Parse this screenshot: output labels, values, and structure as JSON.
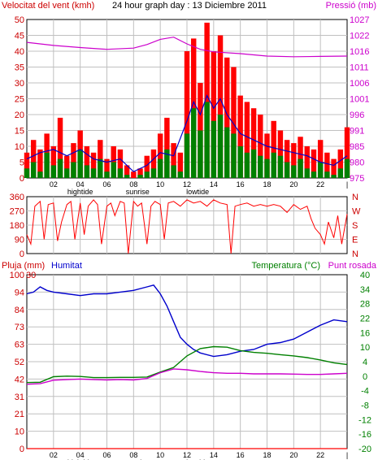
{
  "header": {
    "left_label": "Velocitat del vent (kmh)",
    "title": "24 hour graph day : 13 Diciembre 2011",
    "right_label": "Pressió (mb)"
  },
  "colors": {
    "wind": "#ff0000",
    "wind_avg": "#0000cc",
    "wind_min": "#008000",
    "pressure": "#cc00cc",
    "direction": "#ff0000",
    "humidity": "#0000cc",
    "temperature": "#008000",
    "dewpoint": "#cc00cc",
    "rain": "#ff0000",
    "frame": "#000000",
    "grid": "#c0c0c0"
  },
  "x_axis": {
    "hours": [
      "02",
      "04",
      "06",
      "08",
      "10",
      "12",
      "14",
      "16",
      "18",
      "20",
      "22",
      "|"
    ],
    "events": [
      {
        "label": "hightide",
        "hour": 4
      },
      {
        "label": "sunrise",
        "hour": 8.3
      },
      {
        "label": "lowtide",
        "hour": 12.8
      }
    ]
  },
  "panel_wind": {
    "left_ticks": [
      "0",
      "5",
      "10",
      "15",
      "20",
      "25",
      "30",
      "35",
      "40",
      "45",
      "50"
    ],
    "right_ticks": [
      "975",
      "980",
      "985",
      "991",
      "996",
      "1001",
      "1006",
      "1011",
      "1016",
      "1022",
      "1027"
    ]
  },
  "panel_direction": {
    "left_ticks": [
      "0",
      "90",
      "180",
      "270",
      "360"
    ],
    "right_ticks": [
      "N",
      "E",
      "S",
      "W",
      "N"
    ]
  },
  "panel_weather": {
    "label_rain": "Pluja (mm)",
    "label_humidity": "Humitat",
    "label_temp": "Temperatura (°C)",
    "label_dew": "Punt rosada",
    "hum_ticks": [
      "0",
      "10",
      "21",
      "31",
      "42",
      "52",
      "63",
      "73",
      "84",
      "94",
      "100"
    ],
    "rain_ticks": [
      "30"
    ],
    "temp_ticks": [
      "-20",
      "-16",
      "-12",
      "-8",
      "-4",
      "0",
      "4",
      "10",
      "16",
      "22",
      "28",
      "34",
      "40"
    ]
  },
  "chart_data": [
    {
      "type": "bar",
      "title": "24 hour graph day : 13 Diciembre 2011",
      "ylabel": "Velocitat del vent (kmh)",
      "ylim": [
        0,
        50
      ],
      "x_hours": [
        0,
        24
      ],
      "series": [
        {
          "name": "Velocitat del vent (kmh)",
          "role": "gust",
          "x": [
            0,
            0.5,
            1,
            1.5,
            2,
            2.5,
            3,
            3.5,
            4,
            4.5,
            5,
            5.5,
            6,
            6.5,
            7,
            7.5,
            8,
            8.5,
            9,
            9.5,
            10,
            10.5,
            11,
            11.5,
            12,
            12.5,
            13,
            13.5,
            14,
            14.5,
            15,
            15.5,
            16,
            16.5,
            17,
            17.5,
            18,
            18.5,
            19,
            19.5,
            20,
            20.5,
            21,
            21.5,
            22,
            22.5,
            23,
            23.5,
            24
          ],
          "values": [
            8,
            12,
            9,
            14,
            10,
            19,
            7,
            11,
            15,
            10,
            8,
            12,
            6,
            10,
            9,
            4,
            2,
            3,
            7,
            9,
            14,
            19,
            11,
            8,
            40,
            44,
            30,
            49,
            40,
            45,
            38,
            35,
            26,
            24,
            22,
            20,
            14,
            18,
            15,
            12,
            11,
            13,
            10,
            9,
            12,
            8,
            6,
            9,
            16
          ]
        },
        {
          "name": "avg",
          "role": "avg",
          "x": [
            0,
            1,
            2,
            3,
            4,
            5,
            6,
            7,
            8,
            9,
            10,
            11,
            12,
            12.5,
            13,
            13.5,
            14,
            14.5,
            15,
            15.5,
            16,
            17,
            18,
            19,
            20,
            21,
            22,
            23,
            24
          ],
          "values": [
            6,
            8,
            9,
            7,
            9,
            6,
            5,
            6,
            2,
            4,
            8,
            7,
            18,
            24,
            20,
            26,
            22,
            25,
            20,
            17,
            14,
            12,
            10,
            9,
            8,
            7,
            5,
            4,
            7
          ]
        },
        {
          "name": "min",
          "role": "min",
          "x": [
            0,
            0.5,
            1,
            1.5,
            2,
            2.5,
            3,
            3.5,
            4,
            4.5,
            5,
            5.5,
            6,
            6.5,
            7,
            7.5,
            8,
            8.5,
            9,
            9.5,
            10,
            10.5,
            11,
            11.5,
            12,
            12.5,
            13,
            13.5,
            14,
            14.5,
            15,
            15.5,
            16,
            16.5,
            17,
            17.5,
            18,
            18.5,
            19,
            19.5,
            20,
            20.5,
            21,
            21.5,
            22,
            22.5,
            23,
            23.5,
            24
          ],
          "values": [
            3,
            5,
            2,
            8,
            4,
            6,
            3,
            5,
            9,
            4,
            3,
            6,
            2,
            5,
            3,
            1,
            0,
            1,
            2,
            3,
            6,
            9,
            4,
            2,
            14,
            22,
            15,
            24,
            18,
            20,
            16,
            14,
            10,
            8,
            9,
            7,
            6,
            8,
            7,
            5,
            4,
            6,
            3,
            2,
            5,
            2,
            1,
            3,
            6
          ]
        },
        {
          "name": "Pressió (mb)",
          "role": "pressure",
          "x": [
            0,
            2,
            4,
            6,
            8,
            9,
            10,
            11,
            12,
            13,
            14,
            16,
            18,
            20,
            22,
            24
          ],
          "values": [
            1019.5,
            1018.5,
            1017.8,
            1017.2,
            1017.6,
            1018.8,
            1020.5,
            1021.2,
            1019.0,
            1017.2,
            1016.4,
            1015.8,
            1015.0,
            1014.8,
            1014.9,
            1015.0
          ]
        }
      ],
      "y2lim": [
        975,
        1027
      ]
    },
    {
      "type": "line",
      "title": "",
      "ylim": [
        0,
        360
      ],
      "x_hours": [
        0,
        24
      ],
      "series": [
        {
          "name": "",
          "x": [
            0,
            0.3,
            0.6,
            1,
            1.3,
            1.6,
            2,
            2.3,
            2.6,
            3,
            3.3,
            3.6,
            4,
            4.3,
            4.6,
            5,
            5.3,
            5.6,
            6,
            6.3,
            6.6,
            7,
            7.3,
            7.6,
            8,
            8.3,
            8.6,
            9,
            9.3,
            9.6,
            10,
            10.3,
            10.6,
            11,
            11.5,
            12,
            12.5,
            13,
            13.5,
            14,
            14.5,
            15,
            15.3,
            15.6,
            16,
            16.5,
            17,
            17.5,
            18,
            18.5,
            19,
            19.5,
            20,
            20.5,
            21,
            21.3,
            21.6,
            22,
            22.3,
            22.6,
            23,
            23.3,
            23.6,
            24
          ],
          "values": [
            120,
            60,
            300,
            330,
            90,
            310,
            320,
            80,
            200,
            310,
            330,
            90,
            320,
            120,
            300,
            340,
            310,
            60,
            300,
            320,
            240,
            330,
            320,
            0,
            330,
            300,
            320,
            60,
            300,
            330,
            310,
            90,
            320,
            330,
            300,
            340,
            320,
            330,
            300,
            340,
            320,
            310,
            0,
            300,
            310,
            320,
            300,
            310,
            300,
            310,
            300,
            260,
            310,
            280,
            300,
            220,
            160,
            120,
            60,
            200,
            100,
            240,
            60,
            250
          ]
        }
      ]
    },
    {
      "type": "line",
      "title": "",
      "ylim": [
        0,
        100
      ],
      "x_hours": [
        0,
        24
      ],
      "series": [
        {
          "name": "Humitat",
          "x": [
            0,
            0.5,
            1,
            1.5,
            2,
            3,
            4,
            5,
            6,
            7,
            8,
            9,
            9.5,
            10,
            10.5,
            11,
            11.5,
            12,
            12.5,
            13,
            14,
            15,
            16,
            17,
            18,
            19,
            20,
            21,
            22,
            23,
            24
          ],
          "values": [
            89,
            90,
            93,
            91,
            90,
            89,
            88,
            89,
            89,
            90,
            91,
            93,
            94,
            89,
            82,
            73,
            64,
            60,
            57,
            55,
            53,
            54,
            56,
            57,
            60,
            61,
            63,
            67,
            71,
            74,
            73
          ]
        },
        {
          "name": "Temperatura (°C)",
          "x": [
            0,
            1,
            2,
            3,
            4,
            5,
            6,
            7,
            8,
            9,
            10,
            11,
            12,
            13,
            14,
            15,
            16,
            17,
            18,
            19,
            20,
            21,
            22,
            23,
            24
          ],
          "values": [
            2.8,
            2.9,
            4.8,
            5.0,
            4.9,
            4.5,
            4.5,
            4.6,
            4.6,
            4.7,
            6.4,
            8.0,
            12.0,
            14.5,
            15.2,
            15.0,
            13.8,
            13.2,
            12.9,
            12.4,
            12.0,
            11.4,
            10.6,
            9.6,
            9.0
          ]
        },
        {
          "name": "Punt rosada",
          "x": [
            0,
            1,
            2,
            3,
            4,
            5,
            6,
            7,
            8,
            9,
            10,
            11,
            12,
            13,
            14,
            15,
            16,
            17,
            18,
            19,
            20,
            21,
            22,
            23,
            24
          ],
          "values": [
            2.2,
            2.4,
            3.6,
            3.8,
            4.0,
            3.8,
            3.7,
            3.8,
            3.7,
            4.2,
            6.2,
            7.5,
            7.2,
            6.6,
            6.2,
            6.0,
            6.0,
            5.8,
            5.8,
            5.8,
            5.7,
            5.6,
            5.6,
            5.8,
            6.0
          ]
        },
        {
          "name": "Pluja (mm)",
          "x": [
            0,
            24
          ],
          "values": [
            0,
            0
          ]
        }
      ],
      "y2lim": [
        -20,
        40
      ]
    }
  ]
}
